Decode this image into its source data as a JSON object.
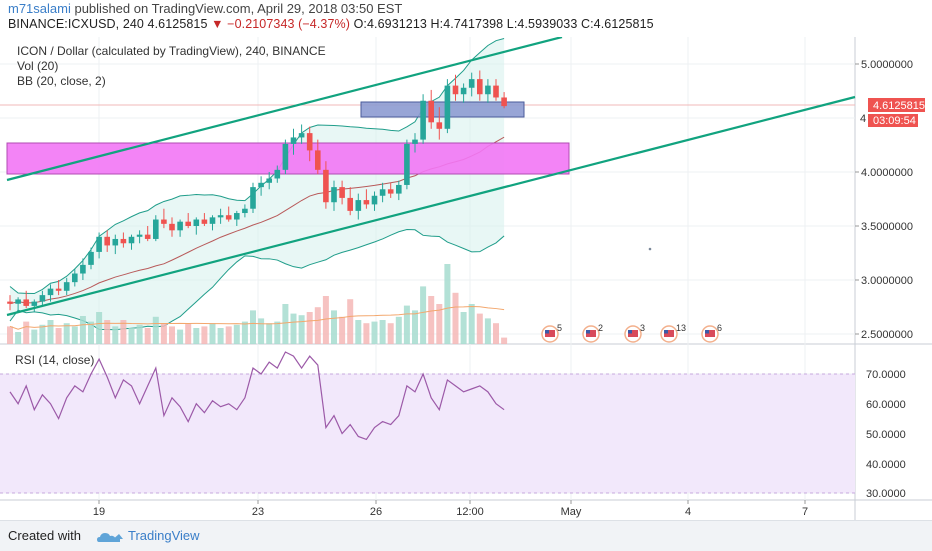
{
  "header": {
    "user": "m71salami",
    "published": " published on TradingView.com, April 29, 2018 03:50 EST",
    "symbol_line_a": "BINANCE:ICXUSD, 240  4.6125815 ",
    "change_arrow": "▼",
    "change": " −0.2107343 (−4.37%) ",
    "ohlc": "O:4.6931213  H:4.7417398  L:4.5939033  C:4.6125815"
  },
  "legend": {
    "title": "ICON / Dollar (calculated by TradingView), 240, BINANCE",
    "vol": "Vol (20)",
    "bb": "BB (20, close, 2)",
    "rsi": "RSI (14, close)"
  },
  "price_badge": "4.6125815",
  "countdown_badge": "03:09:54",
  "price_badge_partial": "4",
  "y_ticks": [
    "5.0000000",
    "4.0000000",
    "3.5000000",
    "3.0000000",
    "2.5000000"
  ],
  "rsi_ticks": [
    "70.0000",
    "60.0000",
    "50.0000",
    "40.0000",
    "30.0000"
  ],
  "x_ticks": [
    "19",
    "23",
    "26",
    "12:00",
    "May",
    "4",
    "7"
  ],
  "events": [
    "5",
    "2",
    "3",
    "13",
    "6"
  ],
  "footer": {
    "created": "Created with",
    "brand": "TradingView"
  },
  "colors": {
    "up": "#26a69a",
    "down": "#ef5350",
    "channel": "#11a37f",
    "zone_magenta": "#f277f5",
    "zone_blue": "#8d9bd1",
    "rsi_line": "#9c5aa8",
    "rsi_band": "#f1e6fb"
  },
  "chart_data": {
    "type": "candlestick",
    "symbol": "BINANCE:ICXUSD",
    "timeframe": "240",
    "last_close": 4.6125815,
    "open_last": 4.6931213,
    "high_last": 4.7417398,
    "low_last": 4.5939033,
    "ylim": [
      2.38,
      5.3
    ],
    "ohlc_approx": [
      [
        2.8,
        2.86,
        2.72,
        2.78
      ],
      [
        2.78,
        2.84,
        2.7,
        2.82
      ],
      [
        2.82,
        2.9,
        2.74,
        2.76
      ],
      [
        2.76,
        2.82,
        2.7,
        2.8
      ],
      [
        2.8,
        2.9,
        2.76,
        2.86
      ],
      [
        2.86,
        2.96,
        2.8,
        2.92
      ],
      [
        2.92,
        3.0,
        2.86,
        2.9
      ],
      [
        2.9,
        3.02,
        2.86,
        2.98
      ],
      [
        2.98,
        3.1,
        2.94,
        3.06
      ],
      [
        3.06,
        3.2,
        3.0,
        3.14
      ],
      [
        3.14,
        3.3,
        3.1,
        3.26
      ],
      [
        3.26,
        3.44,
        3.2,
        3.4
      ],
      [
        3.4,
        3.46,
        3.26,
        3.32
      ],
      [
        3.32,
        3.42,
        3.24,
        3.38
      ],
      [
        3.38,
        3.44,
        3.3,
        3.34
      ],
      [
        3.34,
        3.42,
        3.28,
        3.4
      ],
      [
        3.4,
        3.46,
        3.34,
        3.42
      ],
      [
        3.42,
        3.5,
        3.36,
        3.38
      ],
      [
        3.38,
        3.6,
        3.36,
        3.56
      ],
      [
        3.56,
        3.66,
        3.48,
        3.52
      ],
      [
        3.52,
        3.58,
        3.4,
        3.46
      ],
      [
        3.46,
        3.56,
        3.4,
        3.54
      ],
      [
        3.54,
        3.62,
        3.48,
        3.5
      ],
      [
        3.5,
        3.58,
        3.42,
        3.56
      ],
      [
        3.56,
        3.62,
        3.5,
        3.52
      ],
      [
        3.52,
        3.6,
        3.46,
        3.58
      ],
      [
        3.58,
        3.66,
        3.52,
        3.6
      ],
      [
        3.6,
        3.68,
        3.54,
        3.56
      ],
      [
        3.56,
        3.64,
        3.5,
        3.62
      ],
      [
        3.62,
        3.7,
        3.58,
        3.66
      ],
      [
        3.66,
        3.9,
        3.62,
        3.86
      ],
      [
        3.86,
        3.96,
        3.78,
        3.9
      ],
      [
        3.9,
        4.0,
        3.84,
        3.94
      ],
      [
        3.94,
        4.06,
        3.9,
        4.02
      ],
      [
        4.02,
        4.3,
        3.98,
        4.26
      ],
      [
        4.26,
        4.4,
        4.16,
        4.32
      ],
      [
        4.32,
        4.44,
        4.26,
        4.36
      ],
      [
        4.36,
        4.42,
        4.1,
        4.2
      ],
      [
        4.2,
        4.3,
        3.98,
        4.02
      ],
      [
        4.02,
        4.1,
        3.66,
        3.72
      ],
      [
        3.72,
        3.92,
        3.64,
        3.86
      ],
      [
        3.86,
        3.92,
        3.7,
        3.76
      ],
      [
        3.76,
        3.86,
        3.6,
        3.64
      ],
      [
        3.64,
        3.8,
        3.56,
        3.74
      ],
      [
        3.74,
        3.84,
        3.66,
        3.7
      ],
      [
        3.7,
        3.82,
        3.64,
        3.78
      ],
      [
        3.78,
        3.9,
        3.72,
        3.84
      ],
      [
        3.84,
        3.9,
        3.76,
        3.8
      ],
      [
        3.8,
        3.92,
        3.74,
        3.88
      ],
      [
        3.88,
        4.3,
        3.84,
        4.26
      ],
      [
        4.26,
        4.36,
        4.18,
        4.3
      ],
      [
        4.3,
        4.72,
        4.26,
        4.66
      ],
      [
        4.66,
        4.76,
        4.4,
        4.46
      ],
      [
        4.46,
        4.6,
        4.3,
        4.4
      ],
      [
        4.4,
        4.86,
        4.36,
        4.8
      ],
      [
        4.8,
        4.9,
        4.66,
        4.72
      ],
      [
        4.72,
        4.82,
        4.64,
        4.78
      ],
      [
        4.78,
        4.92,
        4.7,
        4.86
      ],
      [
        4.86,
        4.94,
        4.66,
        4.72
      ],
      [
        4.72,
        4.86,
        4.64,
        4.8
      ],
      [
        4.8,
        4.86,
        4.66,
        4.69
      ],
      [
        4.69,
        4.74,
        4.59,
        4.61
      ]
    ],
    "rsi": [
      64,
      60,
      66,
      58,
      63,
      60,
      55,
      62,
      66,
      64,
      70,
      75,
      69,
      62,
      68,
      66,
      60,
      66,
      72,
      56,
      62,
      59,
      54,
      60,
      57,
      61,
      59,
      60,
      58,
      62,
      72,
      70,
      74,
      72,
      78,
      76,
      72,
      76,
      73,
      52,
      56,
      50,
      53,
      49,
      48,
      52,
      54,
      53,
      56,
      66,
      64,
      70,
      62,
      58,
      68,
      66,
      64,
      65,
      66,
      64,
      60,
      58
    ],
    "volume": [
      0.22,
      0.15,
      0.28,
      0.18,
      0.24,
      0.3,
      0.2,
      0.26,
      0.22,
      0.35,
      0.28,
      0.4,
      0.3,
      0.22,
      0.3,
      0.2,
      0.24,
      0.2,
      0.34,
      0.26,
      0.22,
      0.18,
      0.25,
      0.2,
      0.22,
      0.26,
      0.2,
      0.22,
      0.24,
      0.28,
      0.42,
      0.32,
      0.26,
      0.28,
      0.5,
      0.38,
      0.36,
      0.4,
      0.46,
      0.6,
      0.42,
      0.34,
      0.56,
      0.3,
      0.26,
      0.28,
      0.3,
      0.26,
      0.34,
      0.48,
      0.42,
      0.72,
      0.6,
      0.5,
      1.0,
      0.64,
      0.4,
      0.5,
      0.38,
      0.32,
      0.26,
      0.08
    ]
  }
}
